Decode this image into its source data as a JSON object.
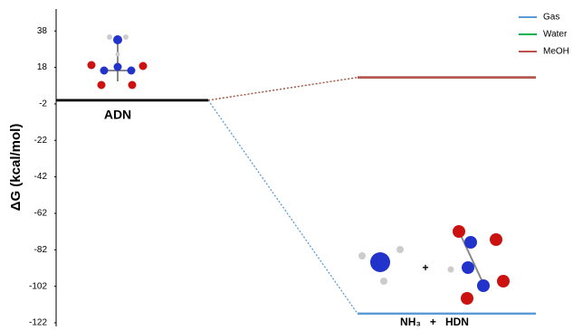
{
  "chart_data": {
    "type": "energy-level",
    "y_label": "ΔG (kcal/mol)",
    "categories": [
      "ADN",
      "NH₃   +   HDN"
    ],
    "annotation": "+",
    "ylim": [
      -122,
      50
    ],
    "yticks": [
      38,
      18,
      -2,
      -22,
      -42,
      -62,
      -82,
      -102,
      -122
    ],
    "grid": false,
    "legend_position": "top-right",
    "series": [
      {
        "name": "Gas",
        "color": "#5b9bd5",
        "values": [
          0,
          -117
        ]
      },
      {
        "name": "Water",
        "color": "#00b050",
        "values": [
          0,
          12.5
        ]
      },
      {
        "name": "MeOH",
        "color": "#c0504d",
        "values": [
          0,
          12.5
        ]
      }
    ]
  }
}
